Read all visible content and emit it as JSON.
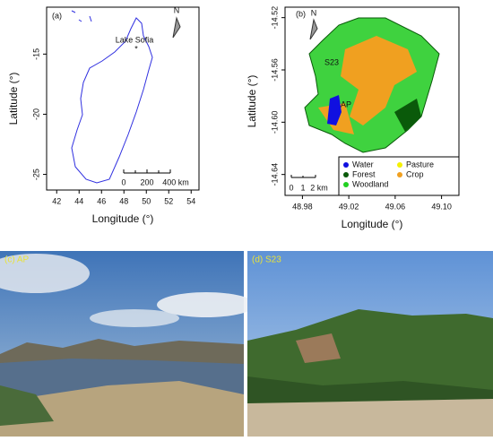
{
  "panels": [
    {
      "label": "(a)",
      "x_label": "Longitude (°)",
      "y_label": "Latitude (°)",
      "xlim": [
        41.1,
        54.7
      ],
      "ylim": [
        -26.3,
        -11.1
      ],
      "xticks": [
        42,
        44,
        46,
        48,
        50,
        52,
        54
      ],
      "yticks": [
        -25,
        -20,
        -15
      ],
      "north": "N",
      "site": "Lake Sofia",
      "scale_labels": [
        "0",
        "200",
        "400 km"
      ]
    },
    {
      "label": "(b)",
      "x_label": "Longitude (°)",
      "y_label": "Latitude (°)",
      "xlim": [
        48.965,
        49.115
      ],
      "ylim": [
        -14.656,
        -14.512
      ],
      "xticks": [
        48.98,
        49.02,
        49.06,
        {
          "value": 49.1,
          "label": "49.10"
        }
      ],
      "yticks": [
        -14.64,
        {
          "value": -14.6,
          "label": "-14.60"
        },
        -14.56,
        -14.52
      ],
      "north": "N",
      "sites": [
        "S23",
        "AP"
      ],
      "legend": [
        {
          "name": "Water",
          "color": "#1010e0"
        },
        {
          "name": "Forest",
          "color": "#0a5a0a"
        },
        {
          "name": "Woodland",
          "color": "#22d022"
        },
        {
          "name": "Pasture",
          "color": "#f4f000"
        },
        {
          "name": "Crop",
          "color": "#f0a020"
        }
      ],
      "scale_labels": [
        "0",
        "1",
        "2 km"
      ]
    }
  ],
  "photos": [
    {
      "label": "(c) AP"
    },
    {
      "label": "(d) S23"
    }
  ]
}
